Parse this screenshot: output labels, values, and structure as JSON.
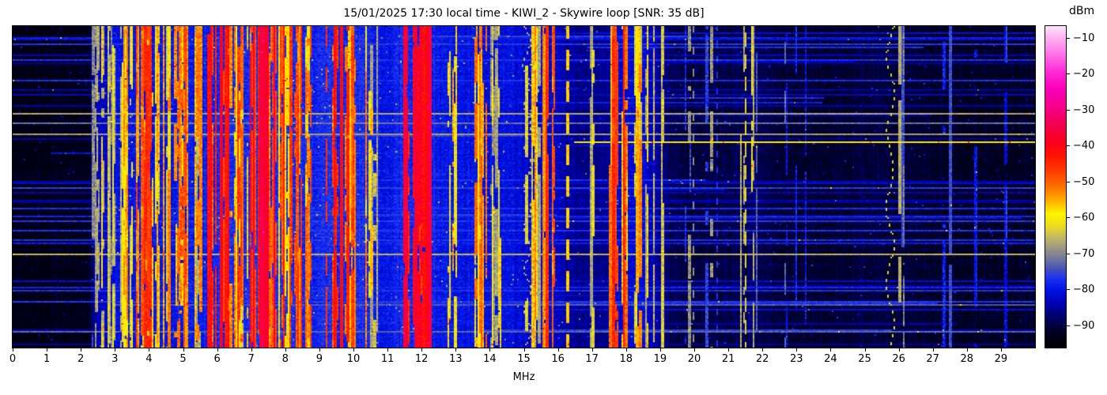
{
  "chart_data": {
    "type": "heatmap",
    "title": "15/01/2025 17:30 local time - KIWI_2 - Skywire loop [SNR: 35 dB]",
    "xlabel": "MHz",
    "x_range": [
      0,
      30
    ],
    "x_ticks": [
      0,
      1,
      2,
      3,
      4,
      5,
      6,
      7,
      8,
      9,
      10,
      11,
      12,
      13,
      14,
      15,
      16,
      17,
      18,
      19,
      20,
      21,
      22,
      23,
      24,
      25,
      26,
      27,
      28,
      29
    ],
    "x_tick_labels": [
      "0",
      "1",
      "2",
      "3",
      "4",
      "5",
      "6",
      "7",
      "8",
      "9",
      "10",
      "11",
      "12",
      "13",
      "14",
      "15",
      "16",
      "17",
      "18",
      "19",
      "20",
      "21",
      "22",
      "23",
      "24",
      "25",
      "26",
      "27",
      "28",
      "29"
    ],
    "y_axis_ticks_shown": false,
    "colorbar": {
      "title": "dBm",
      "vmax": -6.8,
      "vmin": -96.2,
      "ticks": [
        -10,
        -20,
        -30,
        -40,
        -50,
        -60,
        -70,
        -80,
        -90
      ],
      "tick_labels": [
        "−10",
        "−20",
        "−30",
        "−40",
        "−50",
        "−60",
        "−70",
        "−80",
        "−90"
      ]
    },
    "colormap_stops": [
      [
        -96.2,
        "#000004"
      ],
      [
        -92,
        "#000022"
      ],
      [
        -88,
        "#000066"
      ],
      [
        -84,
        "#0000b4"
      ],
      [
        -80,
        "#0014e6"
      ],
      [
        -77,
        "#1e32f0"
      ],
      [
        -74,
        "#4a58b4"
      ],
      [
        -71,
        "#7a7e98"
      ],
      [
        -68,
        "#a49e7c"
      ],
      [
        -65,
        "#ccc05a"
      ],
      [
        -62,
        "#f0e018"
      ],
      [
        -59,
        "#fff400"
      ],
      [
        -55,
        "#ffa800"
      ],
      [
        -51,
        "#ff6a00"
      ],
      [
        -47,
        "#ff3c00"
      ],
      [
        -43,
        "#ff1400"
      ],
      [
        -39,
        "#fa0020"
      ],
      [
        -34,
        "#f30052"
      ],
      [
        -29,
        "#f6008c"
      ],
      [
        -24,
        "#fb00bc"
      ],
      [
        -19,
        "#ff30d8"
      ],
      [
        -14,
        "#ff7ce8"
      ],
      [
        -10,
        "#ffb2f0"
      ],
      [
        -6.8,
        "#fce4fa"
      ]
    ],
    "noise_floor_dbm": [
      [
        0,
        -93.5
      ],
      [
        2.2,
        -93
      ],
      [
        2.45,
        -84
      ],
      [
        3,
        -80.5
      ],
      [
        5.5,
        -79
      ],
      [
        6,
        -78.5
      ],
      [
        7.3,
        -77
      ],
      [
        8.8,
        -78
      ],
      [
        9.5,
        -77.5
      ],
      [
        10.4,
        -78.5
      ],
      [
        11,
        -80
      ],
      [
        11.5,
        -78
      ],
      [
        12.3,
        -78.5
      ],
      [
        12.55,
        -80
      ],
      [
        14,
        -80.5
      ],
      [
        15,
        -81
      ],
      [
        15.9,
        -82.5
      ],
      [
        16.5,
        -86
      ],
      [
        17.4,
        -86
      ],
      [
        17.7,
        -82.5
      ],
      [
        18.3,
        -81
      ],
      [
        18.8,
        -84
      ],
      [
        19.3,
        -89
      ],
      [
        20,
        -90.5
      ],
      [
        21,
        -89.5
      ],
      [
        21.7,
        -88.5
      ],
      [
        22.5,
        -90.5
      ],
      [
        23,
        -91
      ],
      [
        24,
        -91.2
      ],
      [
        25,
        -90.5
      ],
      [
        26,
        -91
      ],
      [
        27,
        -91.3
      ],
      [
        28,
        -92
      ],
      [
        29,
        -92
      ],
      [
        30,
        -92.2
      ]
    ],
    "station_bands": [
      {
        "range": [
          2.3,
          2.55
        ],
        "count": 5,
        "level": [
          -78,
          -64
        ]
      },
      {
        "range": [
          2.55,
          3.05
        ],
        "count": 10,
        "level": [
          -74,
          -58
        ]
      },
      {
        "range": [
          3.15,
          3.55
        ],
        "count": 10,
        "level": [
          -68,
          -50
        ]
      },
      {
        "range": [
          3.55,
          4.15
        ],
        "count": 22,
        "level": [
          -62,
          -42
        ]
      },
      {
        "range": [
          4.15,
          4.75
        ],
        "count": 14,
        "level": [
          -68,
          -48
        ]
      },
      {
        "range": [
          4.75,
          5.1
        ],
        "count": 10,
        "level": [
          -60,
          -44
        ]
      },
      {
        "range": [
          5.1,
          5.5
        ],
        "count": 8,
        "level": [
          -70,
          -52
        ]
      },
      {
        "range": [
          5.7,
          6.35
        ],
        "count": 22,
        "level": [
          -58,
          -38
        ]
      },
      {
        "range": [
          6.35,
          6.95
        ],
        "count": 12,
        "level": [
          -64,
          -46
        ]
      },
      {
        "range": [
          6.95,
          7.65
        ],
        "count": 26,
        "level": [
          -54,
          -36
        ]
      },
      {
        "range": [
          7.65,
          8.15
        ],
        "count": 12,
        "level": [
          -60,
          -42
        ]
      },
      {
        "range": [
          8.25,
          8.75
        ],
        "count": 10,
        "level": [
          -62,
          -44
        ]
      },
      {
        "range": [
          9.15,
          10.1
        ],
        "count": 24,
        "level": [
          -58,
          -40
        ]
      },
      {
        "range": [
          10.1,
          10.7
        ],
        "count": 8,
        "level": [
          -68,
          -50
        ]
      },
      {
        "range": [
          11.45,
          12.25
        ],
        "count": 20,
        "level": [
          -52,
          -35
        ]
      },
      {
        "range": [
          12.6,
          13.1
        ],
        "count": 6,
        "level": [
          -70,
          -54
        ]
      },
      {
        "range": [
          13.5,
          13.9
        ],
        "count": 9,
        "level": [
          -64,
          -50
        ]
      },
      {
        "range": [
          13.95,
          14.4
        ],
        "count": 7,
        "level": [
          -72,
          -56
        ]
      },
      {
        "range": [
          14.95,
          15.5
        ],
        "count": 9,
        "level": [
          -68,
          -52
        ]
      },
      {
        "range": [
          15.5,
          15.9
        ],
        "count": 8,
        "level": [
          -60,
          -44
        ]
      },
      {
        "range": [
          16.8,
          17.2
        ],
        "count": 3,
        "level": [
          -76,
          -62
        ]
      },
      {
        "range": [
          17.45,
          18.1
        ],
        "count": 10,
        "level": [
          -60,
          -42
        ]
      },
      {
        "range": [
          18.15,
          18.6
        ],
        "count": 7,
        "level": [
          -68,
          -52
        ]
      },
      {
        "range": [
          18.8,
          19.1
        ],
        "count": 4,
        "level": [
          -74,
          -60
        ]
      },
      {
        "range": [
          19.6,
          20.8
        ],
        "count": 5,
        "level": [
          -80,
          -66
        ]
      },
      {
        "range": [
          21.3,
          21.8
        ],
        "count": 5,
        "level": [
          -74,
          -60
        ]
      },
      {
        "range": [
          22.2,
          23.4
        ],
        "count": 4,
        "level": [
          -82,
          -70
        ]
      },
      {
        "range": [
          25.5,
          26.1
        ],
        "count": 3,
        "level": [
          -78,
          -66
        ]
      },
      {
        "range": [
          27.0,
          29.5
        ],
        "count": 5,
        "level": [
          -84,
          -74
        ]
      }
    ],
    "carriers": [
      {
        "f": 16.22,
        "w": 2,
        "level": -57,
        "on": 13,
        "off": 7
      },
      {
        "f": 19.95,
        "w": 1,
        "level": -69,
        "on": 5,
        "off": 9
      },
      {
        "f": 20.62,
        "w": 1,
        "level": -77,
        "on": 4,
        "off": 6
      },
      {
        "f": 21.46,
        "w": 1,
        "level": -63,
        "on": 9,
        "off": 5
      },
      {
        "f": 11.76,
        "w": 2,
        "level": -37,
        "on": 1,
        "off": 0
      },
      {
        "f": 12.08,
        "w": 2,
        "level": -40,
        "on": 1,
        "off": 0
      },
      {
        "f": 7.25,
        "w": 2,
        "level": -36,
        "on": 1,
        "off": 0
      },
      {
        "f": 7.42,
        "w": 2,
        "level": -38,
        "on": 1,
        "off": 0
      },
      {
        "f": 6.07,
        "w": 2,
        "level": -40,
        "on": 1,
        "off": 0
      },
      {
        "f": 9.58,
        "w": 2,
        "level": -42,
        "on": 1,
        "off": 0
      },
      {
        "f": 15.62,
        "w": 1,
        "level": -45,
        "on": 1,
        "off": 0
      },
      {
        "f": 17.9,
        "w": 1,
        "level": -44,
        "on": 1,
        "off": 0
      },
      {
        "f": 17.55,
        "w": 1,
        "level": -56,
        "on": 1,
        "off": 0
      },
      {
        "f": 18.25,
        "w": 1,
        "level": -59,
        "on": 1,
        "off": 0
      }
    ],
    "drifters": [
      {
        "f": 25.72,
        "amp": 0.1,
        "period": 48,
        "level": -63,
        "dotOn": 2,
        "dotOff": 3
      },
      {
        "f": 15.08,
        "amp": 0.1,
        "period": 26,
        "level": -66,
        "dotOn": 2,
        "dotOff": 2
      },
      {
        "f": 15.3,
        "amp": 0.12,
        "period": 34,
        "level": -68,
        "dotOn": 2,
        "dotOff": 2
      }
    ],
    "streaks": {
      "random_count": 55,
      "bright": [
        {
          "y": 0.268,
          "level": -67,
          "x0": 0,
          "x1": 1
        },
        {
          "y": 0.3,
          "level": -72,
          "x0": 0,
          "x1": 1
        },
        {
          "y": 0.335,
          "level": -68,
          "x0": 0,
          "x1": 1
        },
        {
          "y": 0.356,
          "level": -60,
          "x0": 0.55,
          "x1": 1
        },
        {
          "y": 0.705,
          "level": -66,
          "x0": 0,
          "x1": 1
        },
        {
          "y": 0.865,
          "level": -74,
          "x0": 0.1,
          "x1": 1
        },
        {
          "y": 0.945,
          "level": -73,
          "x0": 0,
          "x1": 1
        }
      ]
    },
    "seed": 1337
  }
}
